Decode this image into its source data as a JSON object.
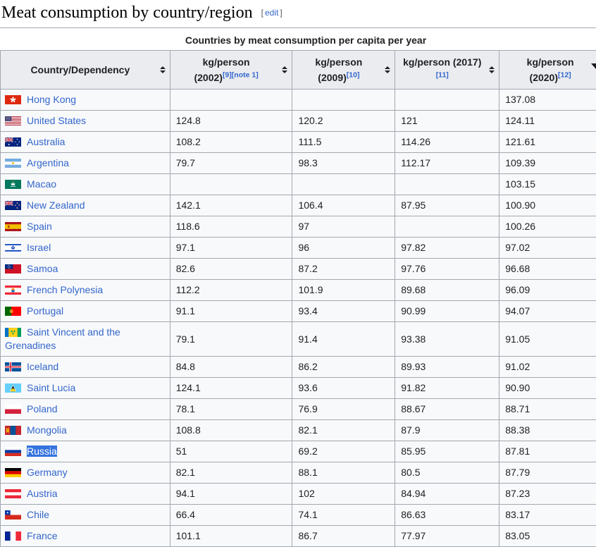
{
  "header": {
    "title": "Meat consumption by country/region",
    "edit": {
      "open": "[",
      "label": "edit",
      "close": "]"
    }
  },
  "table": {
    "caption": "Countries by meat consumption per capita per year",
    "columns": [
      {
        "id": "country",
        "lines": [
          {
            "text": "Country/Dependency",
            "refs": []
          }
        ],
        "sorted": ""
      },
      {
        "id": "kg2002",
        "lines": [
          {
            "text": "kg/person",
            "refs": []
          },
          {
            "text": "(2002)",
            "refs": [
              "[9]",
              "[note 1]"
            ]
          }
        ],
        "sorted": ""
      },
      {
        "id": "kg2009",
        "lines": [
          {
            "text": "kg/person",
            "refs": []
          },
          {
            "text": "(2009)",
            "refs": [
              "[10]"
            ]
          }
        ],
        "sorted": ""
      },
      {
        "id": "kg2017",
        "lines": [
          {
            "text": "kg/person (2017)",
            "refs": []
          },
          {
            "text": "",
            "refs": [
              "[11]"
            ]
          }
        ],
        "sorted": ""
      },
      {
        "id": "kg2020",
        "lines": [
          {
            "text": "kg/person",
            "refs": []
          },
          {
            "text": "(2020)",
            "refs": [
              "[12]"
            ]
          }
        ],
        "sorted": "desc"
      }
    ],
    "rows": [
      {
        "country": "Hong Kong",
        "flag": "hong-kong",
        "kg2002": "",
        "kg2009": "",
        "kg2017": "",
        "kg2020": "137.08",
        "selected": false
      },
      {
        "country": "United States",
        "flag": "united-states",
        "kg2002": "124.8",
        "kg2009": "120.2",
        "kg2017": "121",
        "kg2020": "124.11",
        "selected": false
      },
      {
        "country": "Australia",
        "flag": "australia",
        "kg2002": "108.2",
        "kg2009": "111.5",
        "kg2017": "114.26",
        "kg2020": "121.61",
        "selected": false
      },
      {
        "country": "Argentina",
        "flag": "argentina",
        "kg2002": "79.7",
        "kg2009": "98.3",
        "kg2017": "112.17",
        "kg2020": "109.39",
        "selected": false
      },
      {
        "country": "Macao",
        "flag": "macao",
        "kg2002": "",
        "kg2009": "",
        "kg2017": "",
        "kg2020": "103.15",
        "selected": false
      },
      {
        "country": "New Zealand",
        "flag": "new-zealand",
        "kg2002": "142.1",
        "kg2009": "106.4",
        "kg2017": "87.95",
        "kg2020": "100.90",
        "selected": false
      },
      {
        "country": "Spain",
        "flag": "spain",
        "kg2002": "118.6",
        "kg2009": "97",
        "kg2017": "",
        "kg2020": "100.26",
        "selected": false
      },
      {
        "country": "Israel",
        "flag": "israel",
        "kg2002": "97.1",
        "kg2009": "96",
        "kg2017": "97.82",
        "kg2020": "97.02",
        "selected": false
      },
      {
        "country": "Samoa",
        "flag": "samoa",
        "kg2002": "82.6",
        "kg2009": "87.2",
        "kg2017": "97.76",
        "kg2020": "96.68",
        "selected": false
      },
      {
        "country": "French Polynesia",
        "flag": "french-polynesia",
        "kg2002": "112.2",
        "kg2009": "101.9",
        "kg2017": "89.68",
        "kg2020": "96.09",
        "selected": false
      },
      {
        "country": "Portugal",
        "flag": "portugal",
        "kg2002": "91.1",
        "kg2009": "93.4",
        "kg2017": "90.99",
        "kg2020": "94.07",
        "selected": false
      },
      {
        "country": "Saint Vincent and the Grenadines",
        "flag": "saint-vincent",
        "kg2002": "79.1",
        "kg2009": "91.4",
        "kg2017": "93.38",
        "kg2020": "91.05",
        "selected": false
      },
      {
        "country": "Iceland",
        "flag": "iceland",
        "kg2002": "84.8",
        "kg2009": "86.2",
        "kg2017": "89.93",
        "kg2020": "91.02",
        "selected": false
      },
      {
        "country": "Saint Lucia",
        "flag": "saint-lucia",
        "kg2002": "124.1",
        "kg2009": "93.6",
        "kg2017": "91.82",
        "kg2020": "90.90",
        "selected": false
      },
      {
        "country": "Poland",
        "flag": "poland",
        "kg2002": "78.1",
        "kg2009": "76.9",
        "kg2017": "88.67",
        "kg2020": "88.71",
        "selected": false
      },
      {
        "country": "Mongolia",
        "flag": "mongolia",
        "kg2002": "108.8",
        "kg2009": "82.1",
        "kg2017": "87.9",
        "kg2020": "88.38",
        "selected": false
      },
      {
        "country": "Russia",
        "flag": "russia",
        "kg2002": "51",
        "kg2009": "69.2",
        "kg2017": "85.95",
        "kg2020": "87.81",
        "selected": true
      },
      {
        "country": "Germany",
        "flag": "germany",
        "kg2002": "82.1",
        "kg2009": "88.1",
        "kg2017": "80.5",
        "kg2020": "87.79",
        "selected": false
      },
      {
        "country": "Austria",
        "flag": "austria",
        "kg2002": "94.1",
        "kg2009": "102",
        "kg2017": "84.94",
        "kg2020": "87.23",
        "selected": false
      },
      {
        "country": "Chile",
        "flag": "chile",
        "kg2002": "66.4",
        "kg2009": "74.1",
        "kg2017": "86.63",
        "kg2020": "83.17",
        "selected": false
      },
      {
        "country": "France",
        "flag": "france",
        "kg2002": "101.1",
        "kg2009": "86.7",
        "kg2017": "77.97",
        "kg2020": "83.05",
        "selected": false
      }
    ]
  },
  "colors": {
    "link": "#3366cc",
    "text": "#202122",
    "border": "#a2a9b1",
    "header_bg": "#eaecf0",
    "row_bg": "#f8f9fa",
    "selection_bg": "#3473dd",
    "selection_text": "#ffffff",
    "bracket": "#54595d"
  }
}
